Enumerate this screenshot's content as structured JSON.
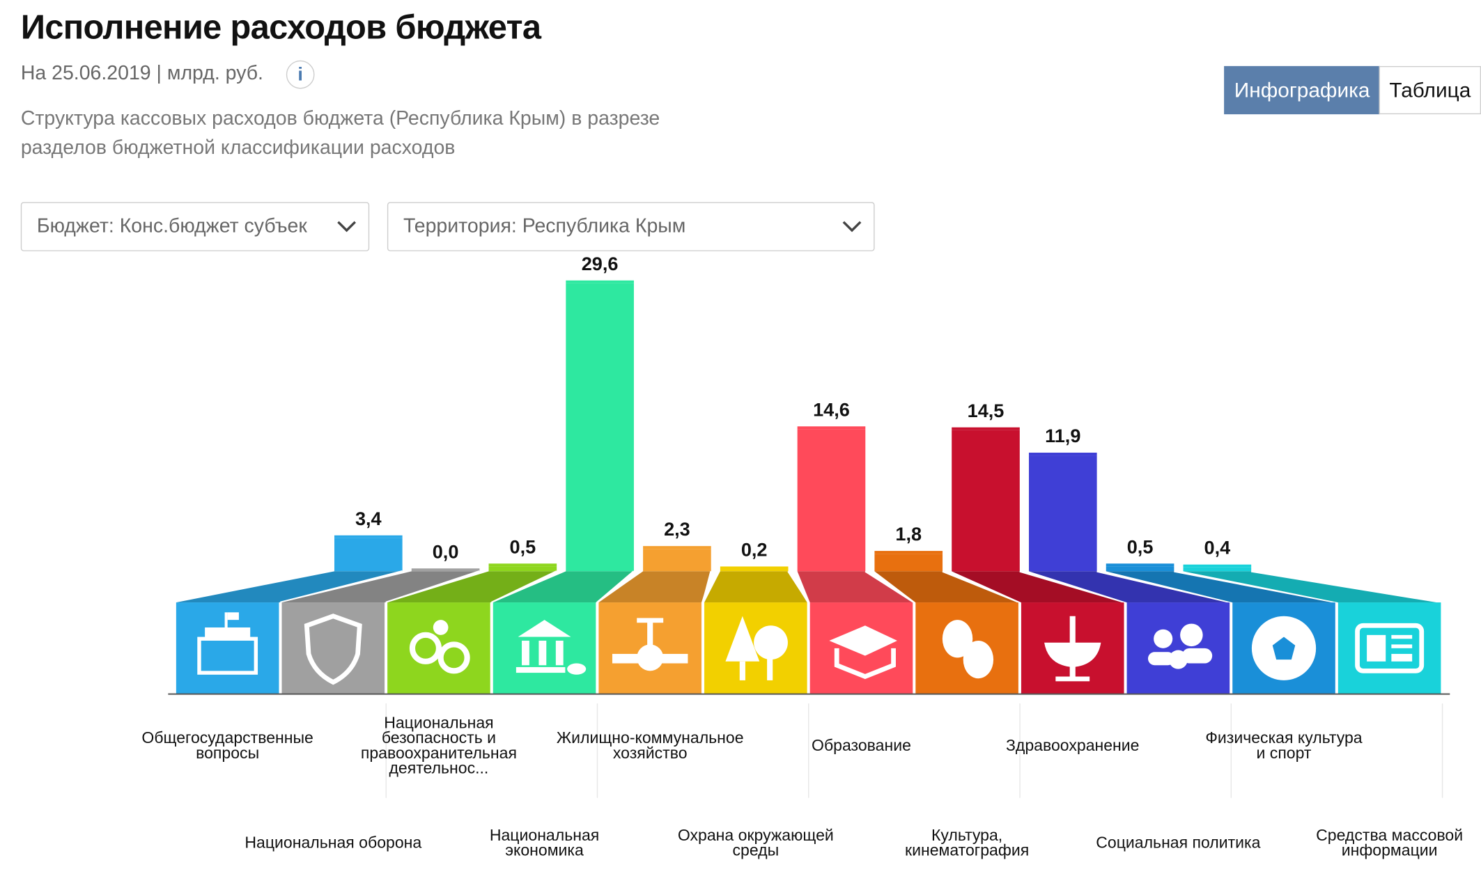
{
  "header": {
    "title": "Исполнение расходов бюджета",
    "subtitle": "На 25.06.2019 | млрд. руб.",
    "info": "i",
    "description": "Структура кассовых расходов бюджета (Республика Крым) в разрезе разделов бюджетной классификации расходов"
  },
  "view_toggle": {
    "buttons": [
      "Инфографика",
      "Таблица"
    ],
    "active": 0
  },
  "filters": [
    "Бюджет: Конс.бюджет субъек",
    "Территория: Республика Крым"
  ],
  "chart_data": {
    "type": "bar",
    "categories": [
      "Общегосударственные\nвопросы",
      "Национальная оборона",
      "Национальная\nбезопасность и\nправоохранительная\nдеятельнос...",
      "Национальная\nэкономика",
      "Жилищно-коммунальное\nхозяйство",
      "Охрана окружающей\nсреды",
      "Образование",
      "Культура,\nкинематография",
      "Здравоохранение",
      "Социальная политика",
      "Физическая культура\nи спорт",
      "Средства массовой\nинформации"
    ],
    "values": [
      3.4,
      0.0,
      0.5,
      29.6,
      2.3,
      0.2,
      14.6,
      1.8,
      14.5,
      11.9,
      0.5,
      0.4
    ],
    "value_labels": [
      "3,4",
      "0,0",
      "0,5",
      "29,6",
      "2,3",
      "0,2",
      "14,6",
      "1,8",
      "14,5",
      "11,9",
      "0,5",
      "0,4"
    ],
    "colors": [
      "#2aa8e8",
      "#a0a0a0",
      "#8ed61e",
      "#2ee8a0",
      "#f5a030",
      "#f2d000",
      "#ff4a5a",
      "#e8700f",
      "#c8102e",
      "#3f3fd6",
      "#1a8fd8",
      "#19d2da"
    ]
  }
}
